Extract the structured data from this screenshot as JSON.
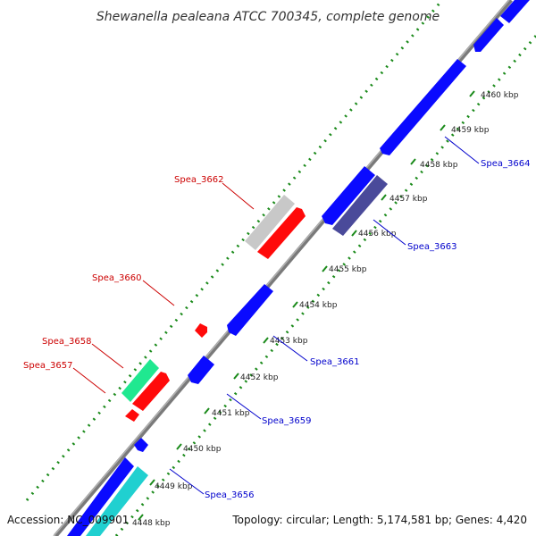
{
  "title": "Shewanella pealeana ATCC 700345, complete genome",
  "footer": {
    "accession": "Accession: NC_009901",
    "topology": "Topology: circular; Length: 5,174,581 bp; Genes: 4,420"
  },
  "colors": {
    "backbone": "#8a8a8a",
    "gc_track": "#1a8a1a",
    "label_forward": "#cc0000",
    "label_reverse": "#0000cc",
    "gene_blue": "#0a0aff",
    "gene_red": "#ff0a0a",
    "gene_gray": "#c8c8c8",
    "gene_teal": "#20d0d0",
    "gene_green": "#20e890",
    "gene_dark": "#4a4a9a"
  },
  "ticks": [
    "4448 kbp",
    "4449 kbp",
    "4450 kbp",
    "4451 kbp",
    "4452 kbp",
    "4453 kbp",
    "4454 kbp",
    "4455 kbp",
    "4456 kbp",
    "4457 kbp",
    "4458 kbp",
    "4459 kbp",
    "4460 kbp"
  ],
  "labels": {
    "forward": [
      "Spea_3662",
      "Spea_3660",
      "Spea_3658",
      "Spea_3657"
    ],
    "reverse": [
      "Spea_3664",
      "Spea_3663",
      "Spea_3661",
      "Spea_3659",
      "Spea_3656"
    ]
  }
}
